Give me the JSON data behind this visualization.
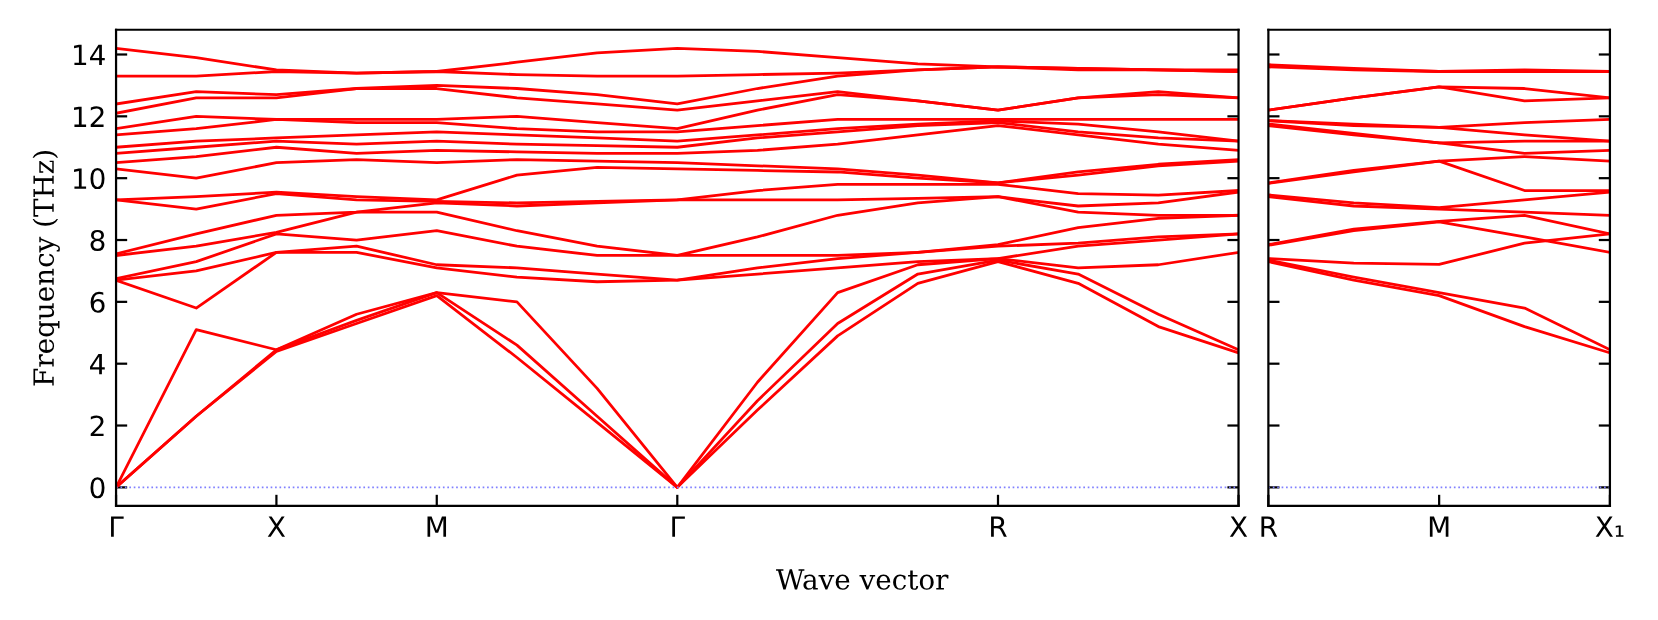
{
  "chart_data": [
    {
      "type": "line",
      "ylabel": "Frequency (THz)",
      "xlabel": "Wave vector",
      "marker": "none",
      "line_style": "solid",
      "grid": false,
      "legend": false,
      "categories": [
        "Γ",
        null,
        "X",
        null,
        "M",
        null,
        null,
        "Γ",
        null,
        null,
        null,
        "R",
        null,
        null,
        "X"
      ],
      "ylim": [
        -0.6,
        14.8
      ],
      "yticks": [
        0,
        2,
        4,
        6,
        8,
        10,
        12,
        14
      ],
      "ref_lines": [
        {
          "axis": "y",
          "value": 0,
          "color": "#8080ff",
          "line_style": "dotted"
        }
      ],
      "series": [
        {
          "color": "#ff0000",
          "values": [
            0,
            2.3,
            4.4,
            5.3,
            6.2,
            4.2,
            2.1,
            0,
            2.5,
            4.9,
            6.6,
            7.3,
            6.6,
            5.2,
            4.35
          ]
        },
        {
          "color": "#ff0000",
          "values": [
            0,
            2.3,
            4.45,
            5.4,
            6.3,
            4.6,
            2.3,
            0,
            2.8,
            5.3,
            6.9,
            7.35,
            6.9,
            5.6,
            4.45
          ]
        },
        {
          "color": "#ff0000",
          "values": [
            0,
            5.1,
            4.45,
            5.6,
            6.3,
            6.0,
            3.2,
            0,
            3.4,
            6.3,
            7.2,
            7.4,
            7.1,
            7.2,
            7.6
          ]
        },
        {
          "color": "#ff0000",
          "values": [
            6.7,
            5.8,
            7.6,
            7.6,
            7.1,
            6.8,
            6.65,
            6.7,
            6.9,
            7.1,
            7.3,
            7.4,
            7.8,
            8.0,
            8.2
          ]
        },
        {
          "color": "#ff0000",
          "values": [
            6.7,
            7.0,
            7.6,
            7.8,
            7.2,
            7.1,
            6.9,
            6.7,
            7.1,
            7.4,
            7.6,
            7.8,
            7.9,
            8.1,
            8.2
          ]
        },
        {
          "color": "#ff0000",
          "values": [
            6.75,
            7.3,
            8.2,
            8.0,
            8.3,
            7.8,
            7.5,
            7.5,
            7.5,
            7.5,
            7.6,
            7.85,
            8.4,
            8.7,
            8.8
          ]
        },
        {
          "color": "#ff0000",
          "values": [
            7.5,
            7.8,
            8.25,
            8.9,
            8.9,
            8.3,
            7.8,
            7.5,
            8.1,
            8.8,
            9.2,
            9.4,
            8.9,
            8.8,
            8.8
          ]
        },
        {
          "color": "#ff0000",
          "values": [
            7.55,
            8.2,
            8.8,
            8.9,
            9.2,
            9.1,
            9.2,
            9.3,
            9.3,
            9.3,
            9.35,
            9.4,
            9.1,
            9.2,
            9.55
          ]
        },
        {
          "color": "#ff0000",
          "values": [
            9.3,
            9.0,
            9.5,
            9.3,
            9.25,
            9.2,
            9.25,
            9.3,
            9.6,
            9.8,
            9.8,
            9.8,
            9.5,
            9.45,
            9.6
          ]
        },
        {
          "color": "#ff0000",
          "values": [
            9.3,
            9.4,
            9.55,
            9.4,
            9.3,
            10.1,
            10.35,
            10.3,
            10.25,
            10.2,
            10.0,
            9.85,
            10.1,
            10.4,
            10.55
          ]
        },
        {
          "color": "#ff0000",
          "values": [
            10.3,
            10.0,
            10.5,
            10.6,
            10.5,
            10.6,
            10.55,
            10.5,
            10.4,
            10.3,
            10.1,
            9.85,
            10.2,
            10.45,
            10.6
          ]
        },
        {
          "color": "#ff0000",
          "values": [
            10.5,
            10.7,
            11.0,
            10.8,
            10.9,
            10.85,
            10.8,
            10.8,
            10.9,
            11.1,
            11.4,
            11.7,
            11.4,
            11.1,
            10.9
          ]
        },
        {
          "color": "#ff0000",
          "values": [
            10.8,
            11.0,
            11.2,
            11.1,
            11.2,
            11.1,
            11.05,
            11.0,
            11.3,
            11.5,
            11.7,
            11.8,
            11.5,
            11.3,
            11.2
          ]
        },
        {
          "color": "#ff0000",
          "values": [
            11.0,
            11.2,
            11.3,
            11.4,
            11.5,
            11.4,
            11.3,
            11.2,
            11.4,
            11.6,
            11.75,
            11.85,
            11.75,
            11.5,
            11.2
          ]
        },
        {
          "color": "#ff0000",
          "values": [
            11.4,
            11.6,
            11.9,
            11.8,
            11.8,
            11.6,
            11.5,
            11.5,
            11.7,
            11.9,
            11.9,
            11.9,
            11.9,
            11.9,
            11.9
          ]
        },
        {
          "color": "#ff0000",
          "values": [
            11.6,
            12.0,
            11.9,
            11.9,
            11.9,
            12.0,
            11.8,
            11.6,
            12.2,
            12.7,
            12.5,
            12.2,
            12.6,
            12.7,
            12.6
          ]
        },
        {
          "color": "#ff0000",
          "values": [
            12.1,
            12.6,
            12.6,
            12.9,
            12.9,
            12.6,
            12.4,
            12.2,
            12.5,
            12.8,
            12.5,
            12.2,
            12.6,
            12.8,
            12.6
          ]
        },
        {
          "color": "#ff0000",
          "values": [
            12.4,
            12.8,
            12.7,
            12.9,
            13.0,
            12.9,
            12.7,
            12.4,
            12.9,
            13.3,
            13.5,
            13.6,
            13.5,
            13.5,
            13.45
          ]
        },
        {
          "color": "#ff0000",
          "values": [
            13.3,
            13.3,
            13.45,
            13.4,
            13.45,
            13.35,
            13.3,
            13.3,
            13.35,
            13.4,
            13.5,
            13.6,
            13.55,
            13.5,
            13.45
          ]
        },
        {
          "color": "#ff0000",
          "values": [
            14.2,
            13.9,
            13.5,
            13.4,
            13.45,
            13.75,
            14.05,
            14.2,
            14.1,
            13.9,
            13.7,
            13.6,
            13.55,
            13.5,
            13.5
          ]
        }
      ]
    },
    {
      "type": "line",
      "marker": "none",
      "line_style": "solid",
      "grid": false,
      "legend": false,
      "tick_labels": "x",
      "categories": [
        "R",
        null,
        "M",
        null,
        "X₁"
      ],
      "ylim": [
        -0.6,
        14.8
      ],
      "yticks": [
        {
          "value": 0,
          "label": null
        },
        {
          "value": 2,
          "label": null
        },
        {
          "value": 4,
          "label": null
        },
        {
          "value": 6,
          "label": null
        },
        {
          "value": 8,
          "label": null
        },
        {
          "value": 10,
          "label": null
        },
        {
          "value": 12,
          "label": null
        },
        {
          "value": 14,
          "label": null
        }
      ],
      "ref_lines": [
        {
          "axis": "y",
          "value": 0,
          "color": "#8080ff",
          "line_style": "dotted"
        }
      ],
      "series": [
        {
          "color": "#ff0000",
          "values": [
            7.3,
            6.7,
            6.2,
            5.2,
            4.35
          ]
        },
        {
          "color": "#ff0000",
          "values": [
            7.35,
            6.8,
            6.3,
            5.8,
            4.45
          ]
        },
        {
          "color": "#ff0000",
          "values": [
            7.4,
            7.25,
            7.21,
            7.9,
            8.2
          ]
        },
        {
          "color": "#ff0000",
          "values": [
            7.83,
            8.3,
            8.59,
            8.1,
            7.6
          ]
        },
        {
          "color": "#ff0000",
          "values": [
            7.85,
            8.35,
            8.6,
            8.8,
            8.2
          ]
        },
        {
          "color": "#ff0000",
          "values": [
            9.4,
            9.1,
            9.0,
            8.9,
            8.8
          ]
        },
        {
          "color": "#ff0000",
          "values": [
            9.46,
            9.2,
            9.05,
            9.3,
            9.55
          ]
        },
        {
          "color": "#ff0000",
          "values": [
            9.83,
            10.2,
            10.55,
            9.6,
            9.6
          ]
        },
        {
          "color": "#ff0000",
          "values": [
            9.85,
            10.25,
            10.55,
            10.7,
            10.55
          ]
        },
        {
          "color": "#ff0000",
          "values": [
            11.7,
            11.4,
            11.14,
            10.8,
            10.9
          ]
        },
        {
          "color": "#ff0000",
          "values": [
            11.75,
            11.45,
            11.14,
            11.2,
            11.2
          ]
        },
        {
          "color": "#ff0000",
          "values": [
            11.86,
            11.7,
            11.64,
            11.4,
            11.2
          ]
        },
        {
          "color": "#ff0000",
          "values": [
            11.86,
            11.75,
            11.64,
            11.8,
            11.9
          ]
        },
        {
          "color": "#ff0000",
          "values": [
            12.2,
            12.6,
            12.95,
            12.5,
            12.6
          ]
        },
        {
          "color": "#ff0000",
          "values": [
            12.2,
            12.6,
            12.95,
            12.9,
            12.6
          ]
        },
        {
          "color": "#ff0000",
          "values": [
            13.6,
            13.5,
            13.45,
            13.45,
            13.45
          ]
        },
        {
          "color": "#ff0000",
          "values": [
            13.67,
            13.55,
            13.45,
            13.5,
            13.45
          ]
        }
      ]
    }
  ]
}
